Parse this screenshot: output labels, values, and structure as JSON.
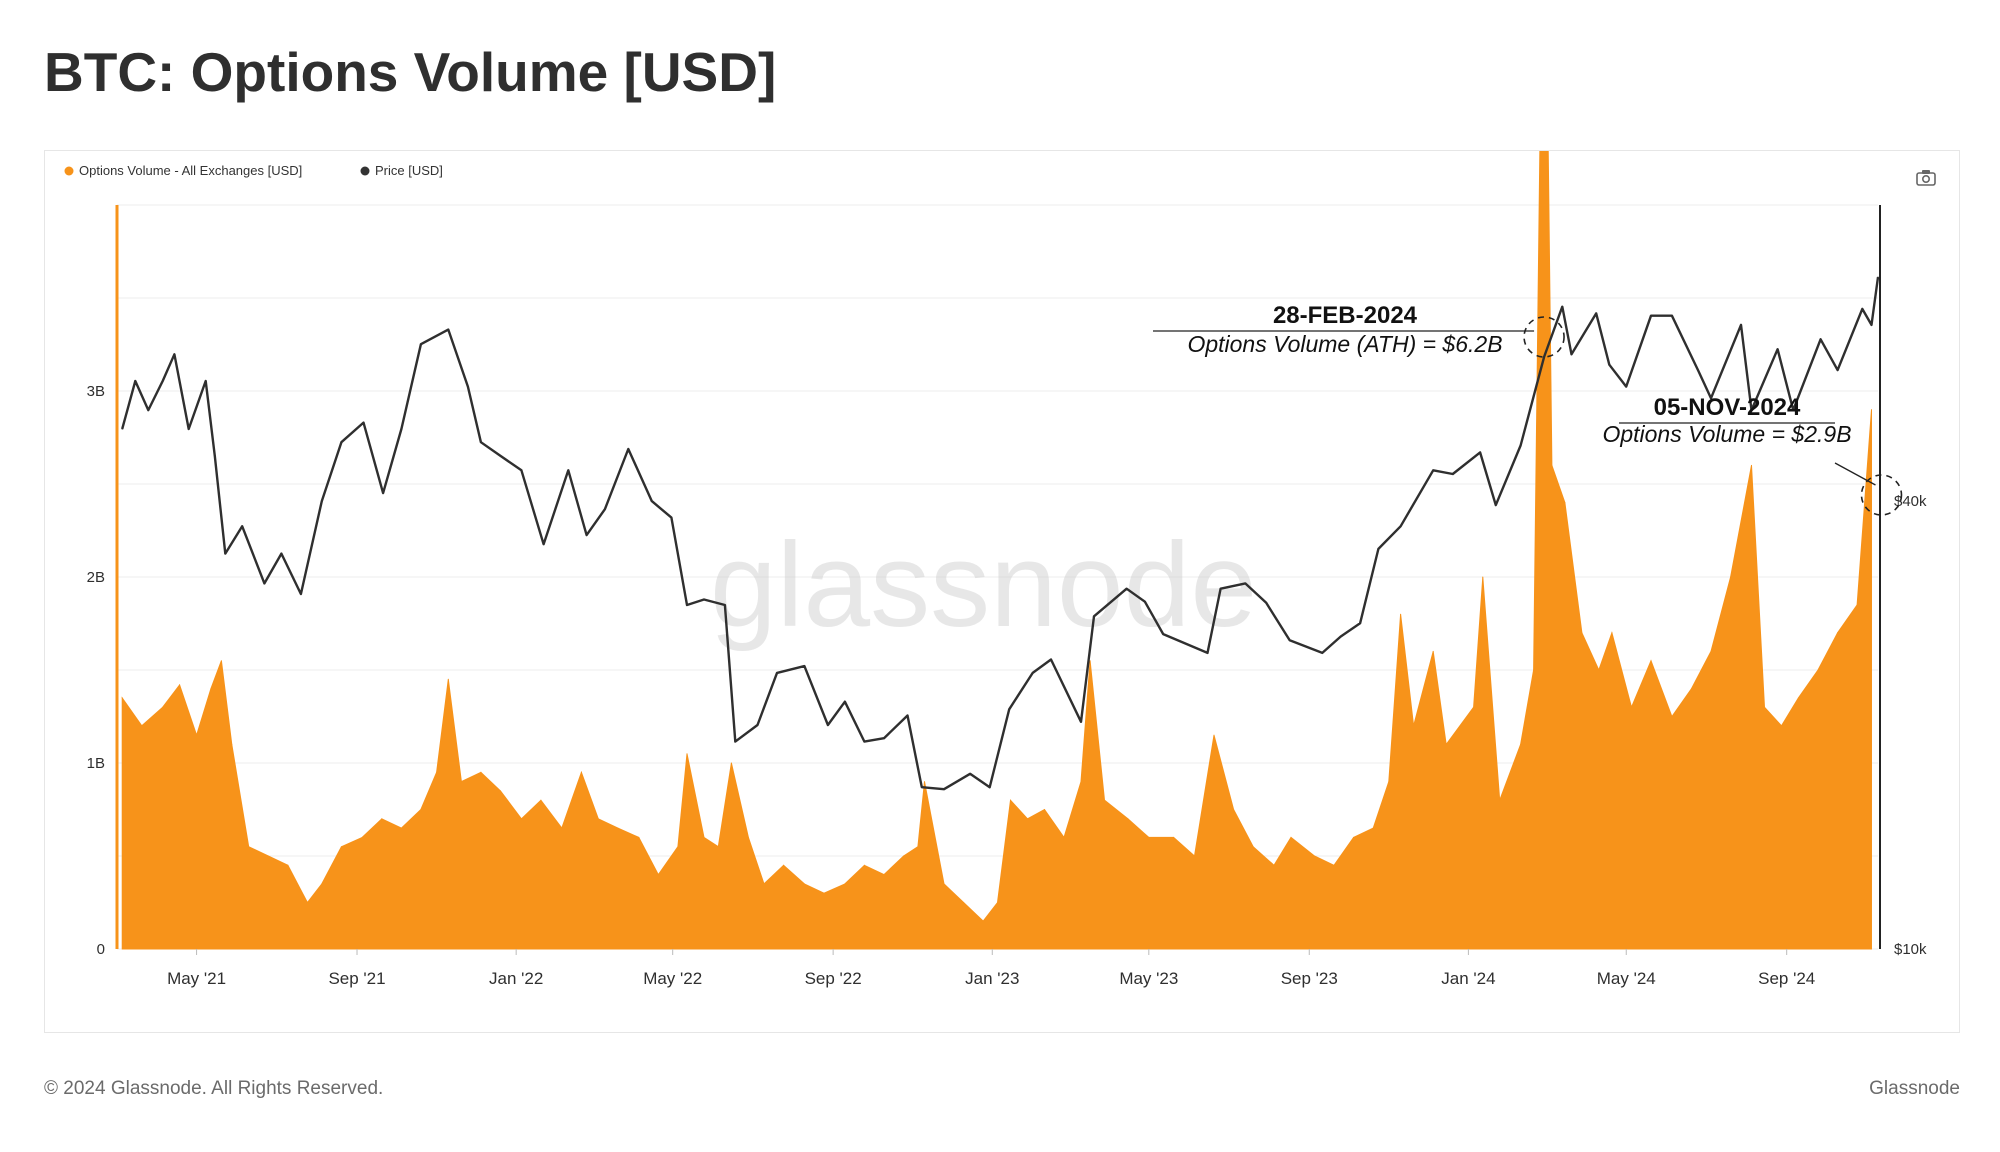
{
  "page": {
    "title": "BTC: Options Volume [USD]",
    "footer_copyright": "© 2024 Glassnode. All Rights Reserved.",
    "footer_brand": "Glassnode",
    "watermark": "glassnode"
  },
  "toolbar": {
    "camera_icon": "camera-icon"
  },
  "colors": {
    "volume": "#f7931a",
    "price": "#2f2f2f",
    "grid": "#eeeeee"
  },
  "chart_data": {
    "type": "area",
    "title": "BTC: Options Volume [USD]",
    "legend": {
      "placement": "top-left",
      "items": [
        "Options Volume - All Exchanges [USD]",
        "Price [USD]"
      ]
    },
    "x_range": [
      "2021-03-01",
      "2024-11-10"
    ],
    "x_ticks": [
      {
        "date": "2021-05-01",
        "label": "May '21"
      },
      {
        "date": "2021-09-01",
        "label": "Sep '21"
      },
      {
        "date": "2022-01-01",
        "label": "Jan '22"
      },
      {
        "date": "2022-05-01",
        "label": "May '22"
      },
      {
        "date": "2022-09-01",
        "label": "Sep '22"
      },
      {
        "date": "2023-01-01",
        "label": "Jan '23"
      },
      {
        "date": "2023-05-01",
        "label": "May '23"
      },
      {
        "date": "2023-09-01",
        "label": "Sep '23"
      },
      {
        "date": "2024-01-01",
        "label": "Jan '24"
      },
      {
        "date": "2024-05-01",
        "label": "May '24"
      },
      {
        "date": "2024-09-01",
        "label": "Sep '24"
      }
    ],
    "y_left": {
      "scale": "linear",
      "range": [
        0,
        4000000000
      ],
      "ticks": [
        {
          "v": 0,
          "label": "0"
        },
        {
          "v": 1000000000,
          "label": "1B"
        },
        {
          "v": 2000000000,
          "label": "2B"
        },
        {
          "v": 3000000000,
          "label": "3B"
        }
      ]
    },
    "y_right": {
      "scale": "log",
      "range": [
        10000,
        100000
      ],
      "ticks": [
        {
          "v": 10000,
          "label": "$10k"
        },
        {
          "v": 40000,
          "label": "$40k"
        }
      ]
    },
    "grid": true,
    "series": [
      {
        "name": "Options Volume - All Exchanges [USD]",
        "axis": "left",
        "color": "#f7931a",
        "points": [
          [
            "2021-03-05",
            1350000000.0
          ],
          [
            "2021-03-20",
            1200000000.0
          ],
          [
            "2021-04-05",
            1300000000.0
          ],
          [
            "2021-04-18",
            1420000000.0
          ],
          [
            "2021-05-01",
            1150000000.0
          ],
          [
            "2021-05-12",
            1400000000.0
          ],
          [
            "2021-05-20",
            1550000000.0
          ],
          [
            "2021-05-28",
            1100000000.0
          ],
          [
            "2021-06-10",
            550000000.0
          ],
          [
            "2021-06-25",
            500000000.0
          ],
          [
            "2021-07-10",
            450000000.0
          ],
          [
            "2021-07-25",
            250000000.0
          ],
          [
            "2021-08-05",
            350000000.0
          ],
          [
            "2021-08-20",
            550000000.0
          ],
          [
            "2021-09-05",
            600000000.0
          ],
          [
            "2021-09-20",
            700000000.0
          ],
          [
            "2021-10-05",
            650000000.0
          ],
          [
            "2021-10-20",
            750000000.0
          ],
          [
            "2021-11-01",
            950000000.0
          ],
          [
            "2021-11-10",
            1450000000.0
          ],
          [
            "2021-11-20",
            900000000.0
          ],
          [
            "2021-12-05",
            950000000.0
          ],
          [
            "2021-12-20",
            850000000.0
          ],
          [
            "2022-01-05",
            700000000.0
          ],
          [
            "2022-01-20",
            800000000.0
          ],
          [
            "2022-02-05",
            650000000.0
          ],
          [
            "2022-02-20",
            950000000.0
          ],
          [
            "2022-03-05",
            700000000.0
          ],
          [
            "2022-03-20",
            650000000.0
          ],
          [
            "2022-04-05",
            600000000.0
          ],
          [
            "2022-04-20",
            400000000.0
          ],
          [
            "2022-05-05",
            550000000.0
          ],
          [
            "2022-05-12",
            1050000000.0
          ],
          [
            "2022-05-25",
            600000000.0
          ],
          [
            "2022-06-05",
            550000000.0
          ],
          [
            "2022-06-15",
            1000000000.0
          ],
          [
            "2022-06-28",
            600000000.0
          ],
          [
            "2022-07-10",
            350000000.0
          ],
          [
            "2022-07-25",
            450000000.0
          ],
          [
            "2022-08-10",
            350000000.0
          ],
          [
            "2022-08-25",
            300000000.0
          ],
          [
            "2022-09-10",
            350000000.0
          ],
          [
            "2022-09-25",
            450000000.0
          ],
          [
            "2022-10-10",
            400000000.0
          ],
          [
            "2022-10-25",
            500000000.0
          ],
          [
            "2022-11-05",
            550000000.0
          ],
          [
            "2022-11-10",
            900000000.0
          ],
          [
            "2022-11-25",
            350000000.0
          ],
          [
            "2022-12-10",
            250000000.0
          ],
          [
            "2022-12-25",
            150000000.0
          ],
          [
            "2023-01-05",
            250000000.0
          ],
          [
            "2023-01-15",
            800000000.0
          ],
          [
            "2023-01-28",
            700000000.0
          ],
          [
            "2023-02-10",
            750000000.0
          ],
          [
            "2023-02-25",
            600000000.0
          ],
          [
            "2023-03-10",
            900000000.0
          ],
          [
            "2023-03-17",
            1550000000.0
          ],
          [
            "2023-03-28",
            800000000.0
          ],
          [
            "2023-04-15",
            700000000.0
          ],
          [
            "2023-05-01",
            600000000.0
          ],
          [
            "2023-05-20",
            600000000.0
          ],
          [
            "2023-06-05",
            500000000.0
          ],
          [
            "2023-06-20",
            1150000000.0
          ],
          [
            "2023-07-05",
            750000000.0
          ],
          [
            "2023-07-20",
            550000000.0
          ],
          [
            "2023-08-05",
            450000000.0
          ],
          [
            "2023-08-18",
            600000000.0
          ],
          [
            "2023-09-05",
            500000000.0
          ],
          [
            "2023-09-20",
            450000000.0
          ],
          [
            "2023-10-05",
            600000000.0
          ],
          [
            "2023-10-20",
            650000000.0
          ],
          [
            "2023-11-01",
            900000000.0
          ],
          [
            "2023-11-10",
            1800000000.0
          ],
          [
            "2023-11-20",
            1200000000.0
          ],
          [
            "2023-12-05",
            1600000000.0
          ],
          [
            "2023-12-15",
            1100000000.0
          ],
          [
            "2024-01-05",
            1300000000.0
          ],
          [
            "2024-01-12",
            2000000000.0
          ],
          [
            "2024-01-25",
            800000000.0
          ],
          [
            "2024-02-10",
            1100000000.0
          ],
          [
            "2024-02-20",
            1500000000.0
          ],
          [
            "2024-02-28",
            6200000000.0
          ],
          [
            "2024-03-05",
            2600000000.0
          ],
          [
            "2024-03-15",
            2400000000.0
          ],
          [
            "2024-03-28",
            1700000000.0
          ],
          [
            "2024-04-10",
            1500000000.0
          ],
          [
            "2024-04-20",
            1700000000.0
          ],
          [
            "2024-05-05",
            1300000000.0
          ],
          [
            "2024-05-20",
            1550000000.0
          ],
          [
            "2024-06-05",
            1250000000.0
          ],
          [
            "2024-06-20",
            1400000000.0
          ],
          [
            "2024-07-05",
            1600000000.0
          ],
          [
            "2024-07-20",
            2000000000.0
          ],
          [
            "2024-08-05",
            2600000000.0
          ],
          [
            "2024-08-15",
            1300000000.0
          ],
          [
            "2024-08-28",
            1200000000.0
          ],
          [
            "2024-09-10",
            1350000000.0
          ],
          [
            "2024-09-25",
            1500000000.0
          ],
          [
            "2024-10-10",
            1700000000.0
          ],
          [
            "2024-10-25",
            1850000000.0
          ],
          [
            "2024-11-05",
            2900000000.0
          ]
        ]
      },
      {
        "name": "Price [USD]",
        "axis": "right",
        "color": "#2f2f2f",
        "points": [
          [
            "2021-03-05",
            50000
          ],
          [
            "2021-03-15",
            58000
          ],
          [
            "2021-03-25",
            53000
          ],
          [
            "2021-04-05",
            58000
          ],
          [
            "2021-04-14",
            63000
          ],
          [
            "2021-04-25",
            50000
          ],
          [
            "2021-05-08",
            58000
          ],
          [
            "2021-05-15",
            46000
          ],
          [
            "2021-05-23",
            34000
          ],
          [
            "2021-06-05",
            37000
          ],
          [
            "2021-06-22",
            31000
          ],
          [
            "2021-07-05",
            34000
          ],
          [
            "2021-07-20",
            30000
          ],
          [
            "2021-08-05",
            40000
          ],
          [
            "2021-08-20",
            48000
          ],
          [
            "2021-09-06",
            51000
          ],
          [
            "2021-09-21",
            41000
          ],
          [
            "2021-10-05",
            50000
          ],
          [
            "2021-10-20",
            65000
          ],
          [
            "2021-11-10",
            68000
          ],
          [
            "2021-11-25",
            57000
          ],
          [
            "2021-12-05",
            48000
          ],
          [
            "2021-12-20",
            46000
          ],
          [
            "2022-01-05",
            44000
          ],
          [
            "2022-01-22",
            35000
          ],
          [
            "2022-02-10",
            44000
          ],
          [
            "2022-02-24",
            36000
          ],
          [
            "2022-03-10",
            39000
          ],
          [
            "2022-03-28",
            47000
          ],
          [
            "2022-04-15",
            40000
          ],
          [
            "2022-04-30",
            38000
          ],
          [
            "2022-05-12",
            29000
          ],
          [
            "2022-05-25",
            29500
          ],
          [
            "2022-06-10",
            29000
          ],
          [
            "2022-06-18",
            19000
          ],
          [
            "2022-07-05",
            20000
          ],
          [
            "2022-07-20",
            23500
          ],
          [
            "2022-08-10",
            24000
          ],
          [
            "2022-08-28",
            20000
          ],
          [
            "2022-09-10",
            21500
          ],
          [
            "2022-09-25",
            19000
          ],
          [
            "2022-10-10",
            19200
          ],
          [
            "2022-10-28",
            20600
          ],
          [
            "2022-11-08",
            16500
          ],
          [
            "2022-11-25",
            16400
          ],
          [
            "2022-12-15",
            17200
          ],
          [
            "2022-12-30",
            16500
          ],
          [
            "2023-01-14",
            21000
          ],
          [
            "2023-02-01",
            23500
          ],
          [
            "2023-02-15",
            24500
          ],
          [
            "2023-03-10",
            20200
          ],
          [
            "2023-03-20",
            28000
          ],
          [
            "2023-04-14",
            30500
          ],
          [
            "2023-04-28",
            29300
          ],
          [
            "2023-05-12",
            26500
          ],
          [
            "2023-06-15",
            25000
          ],
          [
            "2023-06-25",
            30500
          ],
          [
            "2023-07-14",
            31000
          ],
          [
            "2023-07-30",
            29200
          ],
          [
            "2023-08-17",
            26000
          ],
          [
            "2023-09-11",
            25000
          ],
          [
            "2023-09-25",
            26300
          ],
          [
            "2023-10-10",
            27400
          ],
          [
            "2023-10-24",
            34500
          ],
          [
            "2023-11-10",
            37000
          ],
          [
            "2023-12-05",
            44000
          ],
          [
            "2023-12-20",
            43500
          ],
          [
            "2024-01-10",
            46500
          ],
          [
            "2024-01-22",
            39500
          ],
          [
            "2024-02-10",
            47500
          ],
          [
            "2024-02-28",
            62500
          ],
          [
            "2024-03-13",
            73000
          ],
          [
            "2024-03-20",
            63000
          ],
          [
            "2024-04-08",
            71500
          ],
          [
            "2024-04-18",
            61000
          ],
          [
            "2024-05-01",
            57000
          ],
          [
            "2024-05-20",
            71000
          ],
          [
            "2024-06-05",
            71000
          ],
          [
            "2024-06-25",
            60000
          ],
          [
            "2024-07-05",
            55000
          ],
          [
            "2024-07-28",
            69000
          ],
          [
            "2024-08-05",
            53000
          ],
          [
            "2024-08-25",
            64000
          ],
          [
            "2024-09-06",
            53000
          ],
          [
            "2024-09-27",
            66000
          ],
          [
            "2024-10-10",
            60000
          ],
          [
            "2024-10-29",
            72500
          ],
          [
            "2024-11-05",
            69000
          ],
          [
            "2024-11-10",
            80000
          ]
        ]
      }
    ],
    "annotations": [
      {
        "date": "2024-02-28",
        "value": 6200000000.0,
        "title": "28-FEB-2024",
        "text": "Options Volume (ATH) = $6.2B"
      },
      {
        "date": "2024-11-05",
        "value": 2900000000.0,
        "title": "05-NOV-2024",
        "text": "Options Volume = $2.9B"
      }
    ]
  }
}
